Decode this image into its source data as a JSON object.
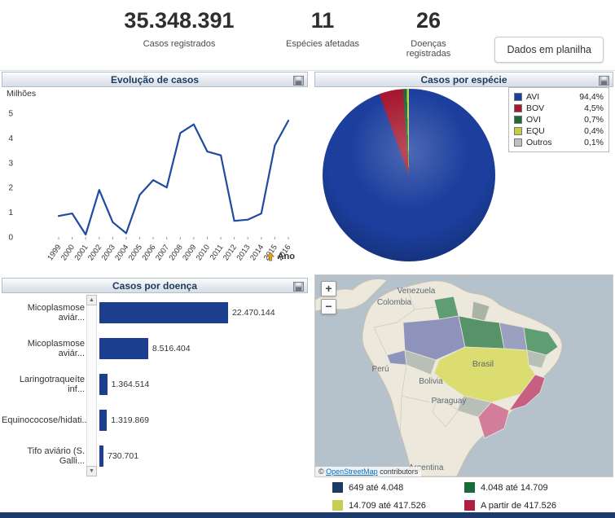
{
  "header": {
    "stats": [
      {
        "value": "35.348.391",
        "label": "Casos registrados"
      },
      {
        "value": "11",
        "label": "Espécies afetadas"
      },
      {
        "value": "26",
        "label": "Doenças registradas"
      }
    ],
    "export_button_label": "Dados em planilha"
  },
  "line_panel": {
    "title": "Evolução de casos",
    "y_unit": "Milhões",
    "x_label": "Ano"
  },
  "pie_panel": {
    "title": "Casos por espécie",
    "legend": [
      {
        "label": "AVI",
        "pct": "94,4%",
        "color": "#1c3f9e"
      },
      {
        "label": "BOV",
        "pct": "4,5%",
        "color": "#a6182f"
      },
      {
        "label": "OVI",
        "pct": "0,7%",
        "color": "#1d6b38"
      },
      {
        "label": "EQU",
        "pct": "0,4%",
        "color": "#c2cc44"
      },
      {
        "label": "Outros",
        "pct": "0,1%",
        "color": "#c0c0c0"
      }
    ]
  },
  "bar_panel": {
    "title": "Casos por doença"
  },
  "map_panel": {
    "zoom_in": "+",
    "zoom_out": "−",
    "attribution_prefix": "© ",
    "attribution_link": "OpenStreetMap",
    "attribution_suffix": " contributors",
    "countries": [
      "Venezuela",
      "Colombia",
      "Perú",
      "Brasil",
      "Bolivia",
      "Paraguay",
      "Argentina"
    ],
    "legend": [
      {
        "label": "649 até 4.048",
        "color": "#1b3a66"
      },
      {
        "label": "4.048 até 14.709",
        "color": "#1a6b3a"
      },
      {
        "label": "14.709 até 417.526",
        "color": "#c6ce52"
      },
      {
        "label": "A partir de 417.526",
        "color": "#b01f40"
      }
    ]
  },
  "chart_data": [
    {
      "type": "line",
      "title": "Evolução de casos",
      "xlabel": "Ano",
      "ylabel": "Milhões",
      "ylim": [
        0,
        5
      ],
      "grid": false,
      "line_color": "#1f4ba0",
      "x": [
        1999,
        2000,
        2001,
        2002,
        2003,
        2004,
        2005,
        2006,
        2007,
        2008,
        2009,
        2010,
        2011,
        2012,
        2013,
        2014,
        2015,
        2016
      ],
      "y": [
        0.85,
        0.95,
        0.1,
        1.9,
        0.6,
        0.15,
        1.7,
        2.3,
        2.0,
        4.2,
        4.55,
        3.45,
        3.3,
        0.65,
        0.7,
        0.95,
        3.7,
        4.7
      ]
    },
    {
      "type": "pie",
      "title": "Casos por espécie",
      "legend_position": "top-right",
      "labels": [
        "AVI",
        "BOV",
        "OVI",
        "EQU",
        "Outros"
      ],
      "values": [
        94.4,
        4.5,
        0.7,
        0.4,
        0.1
      ],
      "colors": [
        "#1c3f9e",
        "#a6182f",
        "#1d6b38",
        "#c2cc44",
        "#c0c0c0"
      ]
    },
    {
      "type": "bar",
      "title": "Casos por doença",
      "orientation": "horizontal",
      "bar_color": "#1d3f8f",
      "categories": [
        "Micoplasmose aviár...",
        "Micoplasmose aviár...",
        "Laringotraqueíte inf...",
        "Equinococose/hidati...",
        "Tifo aviário (S. Galli..."
      ],
      "values": [
        22470144,
        8516404,
        1364514,
        1319869,
        730701
      ],
      "value_labels": [
        "22.470.144",
        "8.516.404",
        "1.364.514",
        "1.319.869",
        "730.701"
      ]
    }
  ]
}
